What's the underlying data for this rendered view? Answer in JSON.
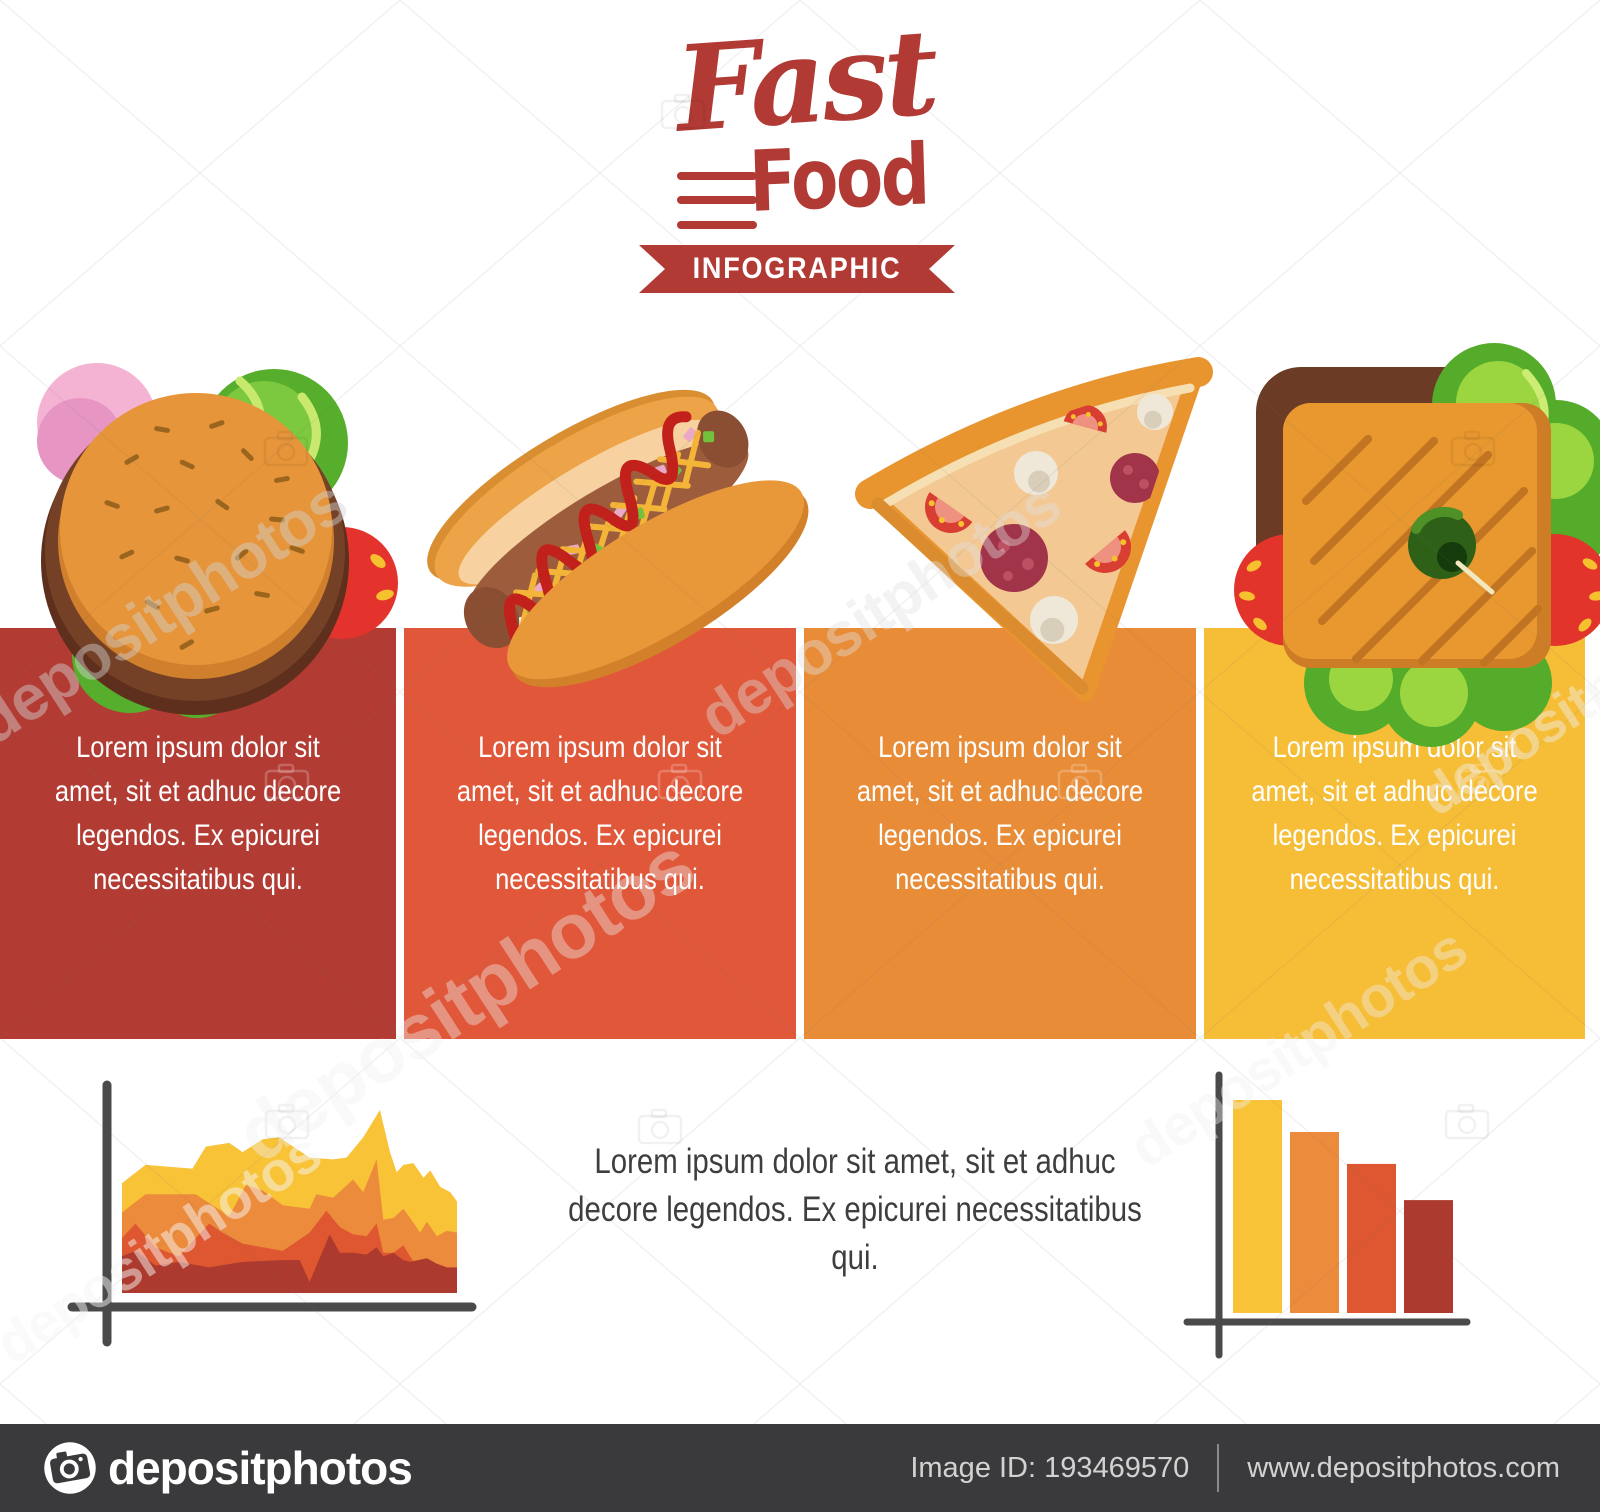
{
  "title_block": {
    "fast": "Fast",
    "food": "Food",
    "banner": "INFOGRAPHIC",
    "logo_color": "#B23A35"
  },
  "watermark": {
    "text": "depositphotos"
  },
  "panels": [
    {
      "name": "burger",
      "color": "#B23C34",
      "lines": [
        "Lorem ipsum dolor sit",
        "amet, sit et adhuc decore",
        "legendos. Ex epicurei",
        "necessitatibus qui."
      ]
    },
    {
      "name": "hot-dog",
      "color": "#E0573A",
      "lines": [
        "Lorem ipsum dolor sit",
        "amet, sit et adhuc decore",
        "legendos. Ex epicurei",
        "necessitatibus qui."
      ]
    },
    {
      "name": "pizza",
      "color": "#E88C38",
      "lines": [
        "Lorem ipsum dolor sit",
        "amet, sit et adhuc decore",
        "legendos. Ex epicurei",
        "necessitatibus qui."
      ]
    },
    {
      "name": "sandwich",
      "color": "#F6BD37",
      "lines": [
        "Lorem ipsum dolor sit",
        "amet, sit et adhuc decore",
        "legendos. Ex epicurei",
        "necessitatibus qui."
      ]
    }
  ],
  "bottom_paragraph": {
    "lines": [
      "Lorem ipsum dolor sit amet, sit et adhuc",
      "decore legendos. Ex epicurei necessitatibus qui."
    ],
    "color": "#3E3E3E"
  },
  "icons": [
    "hamburger-icon",
    "hot-dog-icon",
    "pizza-slice-icon",
    "sandwich-icon",
    "camera-icon"
  ],
  "chart_data": [
    {
      "type": "area",
      "title": "",
      "xlabel": "",
      "ylabel": "",
      "legend": "none",
      "grid": false,
      "axis_color": "#4A4A4A",
      "note": "decorative stacked/layered mountain chart, x and y in percent of plot box",
      "series": [
        {
          "name": "layer-yellow",
          "color": "#F9C338",
          "points": [
            [
              0,
              60
            ],
            [
              7,
              70
            ],
            [
              21,
              68
            ],
            [
              25,
              80
            ],
            [
              32,
              82
            ],
            [
              36,
              77
            ],
            [
              42,
              84
            ],
            [
              47,
              85
            ],
            [
              56,
              74
            ],
            [
              63,
              73
            ],
            [
              67,
              74
            ],
            [
              72,
              85
            ],
            [
              77,
              100
            ],
            [
              80,
              77
            ],
            [
              82,
              66
            ],
            [
              84,
              70
            ],
            [
              87,
              71
            ],
            [
              90,
              63
            ],
            [
              92,
              67
            ],
            [
              95,
              58
            ],
            [
              98,
              55
            ],
            [
              100,
              50
            ]
          ]
        },
        {
          "name": "layer-orange",
          "color": "#EC8B3B",
          "points": [
            [
              0,
              44
            ],
            [
              7,
              54
            ],
            [
              22,
              54
            ],
            [
              32,
              42
            ],
            [
              37,
              59
            ],
            [
              42,
              56
            ],
            [
              48,
              48
            ],
            [
              56,
              46
            ],
            [
              58,
              54
            ],
            [
              63,
              52
            ],
            [
              69,
              62
            ],
            [
              72,
              55
            ],
            [
              76,
              73
            ],
            [
              78,
              40
            ],
            [
              81,
              41
            ],
            [
              84,
              46
            ],
            [
              86,
              41
            ],
            [
              89,
              33
            ],
            [
              91,
              39
            ],
            [
              94,
              31
            ],
            [
              97,
              34
            ],
            [
              100,
              33
            ]
          ]
        },
        {
          "name": "layer-red",
          "color": "#DE5730",
          "points": [
            [
              0,
              30
            ],
            [
              4,
              38
            ],
            [
              10,
              25
            ],
            [
              17,
              20
            ],
            [
              26,
              38
            ],
            [
              30,
              33
            ],
            [
              36,
              27
            ],
            [
              42,
              25
            ],
            [
              48,
              23
            ],
            [
              56,
              33
            ],
            [
              61,
              45
            ],
            [
              65,
              36
            ],
            [
              69,
              32
            ],
            [
              73,
              31
            ],
            [
              76,
              38
            ],
            [
              78,
              22
            ],
            [
              81,
              22
            ],
            [
              84,
              26
            ],
            [
              86,
              20
            ],
            [
              89,
              11
            ],
            [
              91,
              16
            ],
            [
              94,
              10
            ],
            [
              97,
              12
            ],
            [
              100,
              11
            ]
          ]
        },
        {
          "name": "layer-darkred",
          "color": "#AC3A2E",
          "points": [
            [
              0,
              20
            ],
            [
              4,
              23
            ],
            [
              10,
              15
            ],
            [
              17,
              17
            ],
            [
              26,
              14
            ],
            [
              36,
              17
            ],
            [
              48,
              18
            ],
            [
              53,
              18
            ],
            [
              56,
              6
            ],
            [
              62,
              32
            ],
            [
              65,
              22
            ],
            [
              69,
              22
            ],
            [
              73,
              21
            ],
            [
              76,
              25
            ],
            [
              78,
              20
            ],
            [
              81,
              22
            ],
            [
              84,
              18
            ],
            [
              86,
              17
            ],
            [
              91,
              19
            ],
            [
              94,
              16
            ],
            [
              97,
              14
            ],
            [
              100,
              14
            ]
          ]
        }
      ]
    },
    {
      "type": "bar",
      "title": "",
      "categories": [
        "bar1",
        "bar2",
        "bar3",
        "bar4"
      ],
      "values": [
        100,
        85,
        70,
        53
      ],
      "colors": [
        "#F9C338",
        "#EC8B3B",
        "#DE5730",
        "#AC3A2E"
      ],
      "axis_color": "#4A4A4A",
      "grid": false,
      "note": "decorative descending bars, values in percent of tallest bar"
    }
  ],
  "footer": {
    "brand": "depositphotos",
    "image_id_label": "Image ID: 193469570",
    "website": "www.depositphotos.com",
    "bg_color": "#3A3A3C",
    "text_color": "#D2D2D2"
  },
  "colors": {
    "logo_red": "#B23A35",
    "axis": "#4A4A4A",
    "panel_text": "#FFFFFF"
  }
}
